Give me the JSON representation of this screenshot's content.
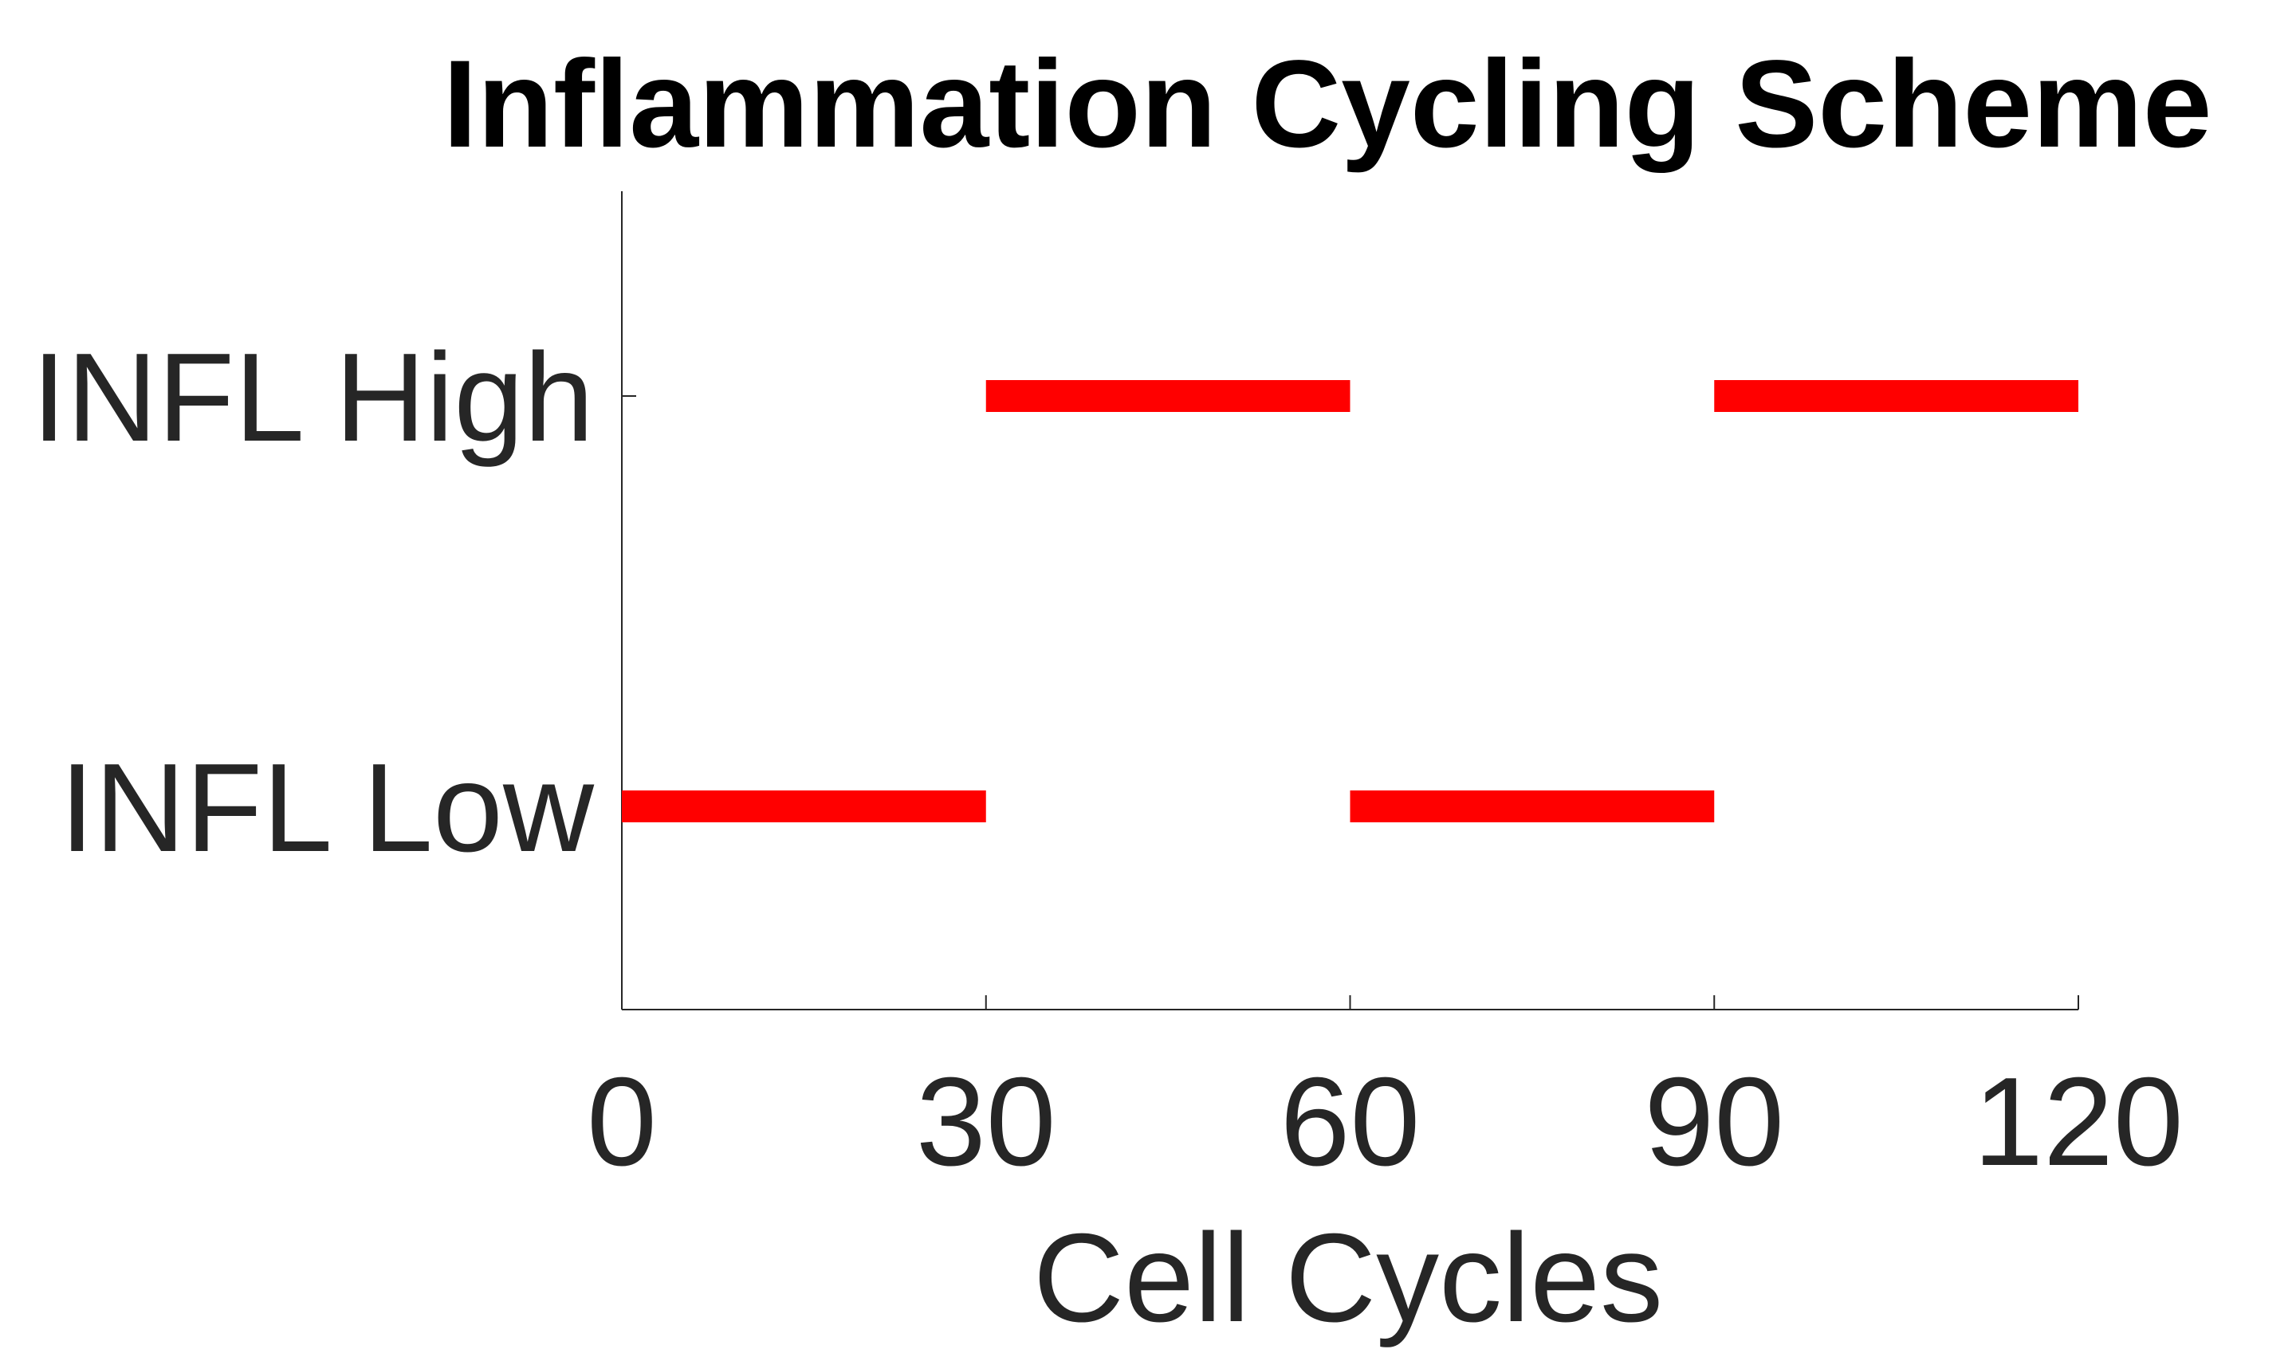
{
  "chart_data": {
    "type": "segments",
    "title": "Inflammation Cycling Scheme",
    "xlabel": "Cell Cycles",
    "ylabel": "",
    "xlim": [
      0,
      120
    ],
    "xticks": [
      0,
      30,
      60,
      90,
      120
    ],
    "categories": [
      "INFL Low",
      "INFL High"
    ],
    "segments": [
      {
        "category": "INFL Low",
        "x_start": 0,
        "x_end": 30
      },
      {
        "category": "INFL High",
        "x_start": 30,
        "x_end": 60
      },
      {
        "category": "INFL Low",
        "x_start": 60,
        "x_end": 90
      },
      {
        "category": "INFL High",
        "x_start": 90,
        "x_end": 120
      }
    ],
    "segment_color": "#ff0000",
    "axis_color": "#262626",
    "grid": false,
    "legend": "none"
  }
}
